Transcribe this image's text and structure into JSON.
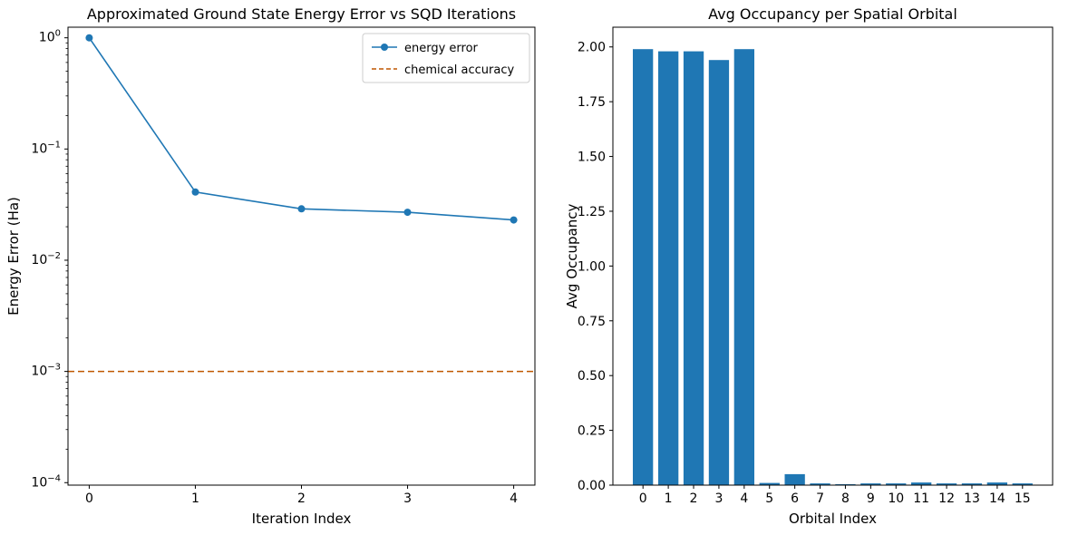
{
  "figure": {
    "background": "#ffffff"
  },
  "chart_data": [
    {
      "type": "line",
      "title": "Approximated Ground State Energy Error vs SQD Iterations",
      "xlabel": "Iteration Index",
      "ylabel": "Energy Error (Ha)",
      "yscale": "log",
      "grid": false,
      "xlim": [
        -0.2,
        4.2
      ],
      "ylim": [
        9.5e-05,
        1.245
      ],
      "x": [
        0,
        1,
        2,
        3,
        4
      ],
      "series": [
        {
          "name": "energy error",
          "color": "#1f77b4",
          "marker": "o",
          "values": [
            1.0,
            0.041,
            0.029,
            0.027,
            0.023
          ]
        }
      ],
      "hline": {
        "label": "chemical accuracy",
        "value": 0.001,
        "color": "#bf5700",
        "linestyle": "dashed"
      },
      "xticks": [
        {
          "value": 0,
          "label": "0"
        },
        {
          "value": 1,
          "label": "1"
        },
        {
          "value": 2,
          "label": "2"
        },
        {
          "value": 3,
          "label": "3"
        },
        {
          "value": 4,
          "label": "4"
        }
      ],
      "yticks": [
        {
          "value": 1,
          "mantissa": "10",
          "exp": "0"
        },
        {
          "value": 0.1,
          "mantissa": "10",
          "exp": "−1"
        },
        {
          "value": 0.01,
          "mantissa": "10",
          "exp": "−2"
        },
        {
          "value": 0.001,
          "mantissa": "10",
          "exp": "−3"
        },
        {
          "value": 0.0001,
          "mantissa": "10",
          "exp": "−4"
        }
      ],
      "legend": {
        "position": "upper right",
        "entries": [
          "energy error",
          "chemical accuracy"
        ]
      }
    },
    {
      "type": "bar",
      "title": "Avg Occupancy per Spatial Orbital",
      "xlabel": "Orbital Index",
      "ylabel": "Avg Occupancy",
      "grid": false,
      "bar_color": "#1f77b4",
      "xlim": [
        -1.19,
        16.19
      ],
      "ylim": [
        0,
        2.09
      ],
      "categories": [
        "0",
        "1",
        "2",
        "3",
        "4",
        "5",
        "6",
        "7",
        "8",
        "9",
        "10",
        "11",
        "12",
        "13",
        "14",
        "15"
      ],
      "values": [
        1.99,
        1.98,
        1.98,
        1.94,
        1.99,
        0.01,
        0.05,
        0.008,
        0.004,
        0.008,
        0.008,
        0.012,
        0.008,
        0.008,
        0.012,
        0.008
      ],
      "yticks": [
        {
          "value": 0.0,
          "label": "0.00"
        },
        {
          "value": 0.25,
          "label": "0.25"
        },
        {
          "value": 0.5,
          "label": "0.50"
        },
        {
          "value": 0.75,
          "label": "0.75"
        },
        {
          "value": 1.0,
          "label": "1.00"
        },
        {
          "value": 1.25,
          "label": "1.25"
        },
        {
          "value": 1.5,
          "label": "1.50"
        },
        {
          "value": 1.75,
          "label": "1.75"
        },
        {
          "value": 2.0,
          "label": "2.00"
        }
      ]
    }
  ]
}
